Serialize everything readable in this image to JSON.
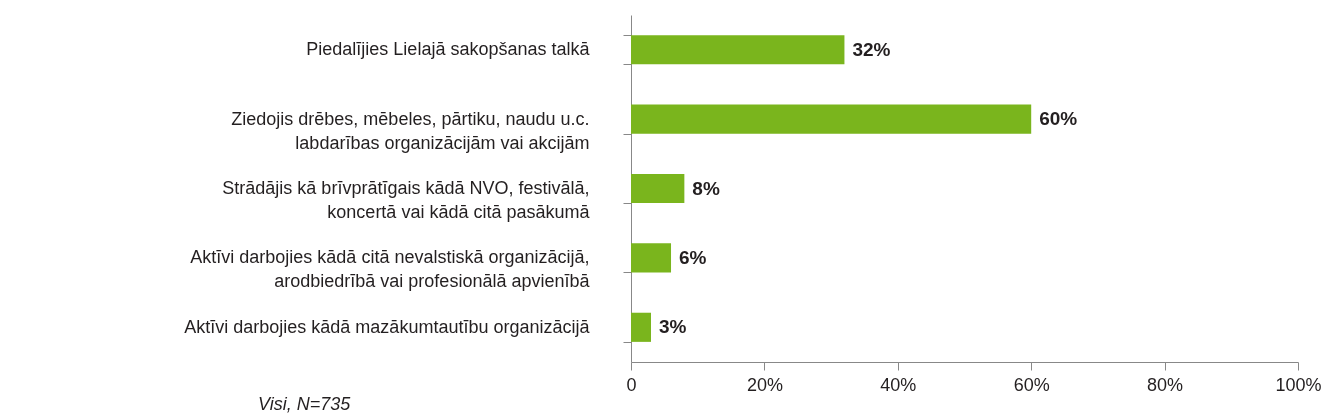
{
  "chart_data": {
    "type": "bar",
    "orientation": "horizontal",
    "categories": [
      "Piedalījies Lielajā sakopšanas talkā",
      "Ziedojis drēbes, mēbeles, pārtiku, naudu u.c.\nlabdarības organizācijām vai akcijām",
      "Strādājis kā brīvprātīgais kādā NVO, festivālā,\nkoncertā vai kādā citā pasākumā",
      "Aktīvi darbojies kādā citā nevalstiskā organizācijā,\narodbiedrībā vai profesionālā apvienībā",
      "Aktīvi darbojies kādā mazākumtautību organizācijā"
    ],
    "values": [
      32,
      60,
      8,
      6,
      3
    ],
    "value_labels": [
      "32%",
      "60%",
      "8%",
      "6%",
      "3%"
    ],
    "color": "#7ab51d",
    "xlim": [
      0,
      100
    ],
    "xticks": [
      0,
      {
        "value": 20,
        "label": "20%"
      },
      {
        "value": 40,
        "label": "40%"
      },
      {
        "value": 60,
        "label": "60%"
      },
      {
        "value": 80,
        "label": "80%"
      },
      {
        "value": 100,
        "label": "100%"
      }
    ],
    "grid": false,
    "annotations": [
      "Visi, N=735"
    ]
  }
}
